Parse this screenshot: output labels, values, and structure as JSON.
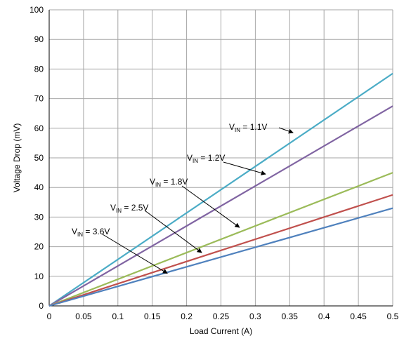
{
  "chart_data": {
    "type": "line",
    "xlabel": "Load Current (A)",
    "ylabel": "Voltage Drop (mV)",
    "xlim": [
      0,
      0.5
    ],
    "ylim": [
      0,
      100
    ],
    "x_ticks": [
      "0",
      "0.05",
      "0.1",
      "0.15",
      "0.2",
      "0.25",
      "0.3",
      "0.35",
      "0.4",
      "0.45",
      "0.5"
    ],
    "y_ticks": [
      "0",
      "10",
      "20",
      "30",
      "40",
      "50",
      "60",
      "70",
      "80",
      "90",
      "100"
    ],
    "grid": true,
    "series": [
      {
        "color": "#4bacc6",
        "x": [
          0,
          0.5
        ],
        "y": [
          0,
          78.5
        ]
      },
      {
        "color": "#8064a2",
        "x": [
          0,
          0.5
        ],
        "y": [
          0,
          67.5
        ]
      },
      {
        "color": "#9bbb59",
        "x": [
          0,
          0.5
        ],
        "y": [
          0,
          45
        ]
      },
      {
        "color": "#c0504d",
        "x": [
          0,
          0.5
        ],
        "y": [
          0,
          37.5
        ]
      },
      {
        "color": "#4f81bd",
        "x": [
          0,
          0.5
        ],
        "y": [
          0,
          33
        ]
      }
    ],
    "annotations": [
      {
        "prefix": "V",
        "sub": "IN",
        "suffix": " = 1.1V",
        "target": [
          0.355,
          58.5
        ]
      },
      {
        "prefix": "V",
        "sub": "IN",
        "suffix": " = 1.2V",
        "target": [
          0.315,
          44.5
        ]
      },
      {
        "prefix": "V",
        "sub": "IN",
        "suffix": " = 1.8V",
        "target": [
          0.277,
          26.5
        ]
      },
      {
        "prefix": "V",
        "sub": "IN",
        "suffix": " = 2.5V",
        "target": [
          0.222,
          18
        ]
      },
      {
        "prefix": "V",
        "sub": "IN",
        "suffix": " = 3.6V",
        "target": [
          0.172,
          11
        ]
      }
    ]
  }
}
